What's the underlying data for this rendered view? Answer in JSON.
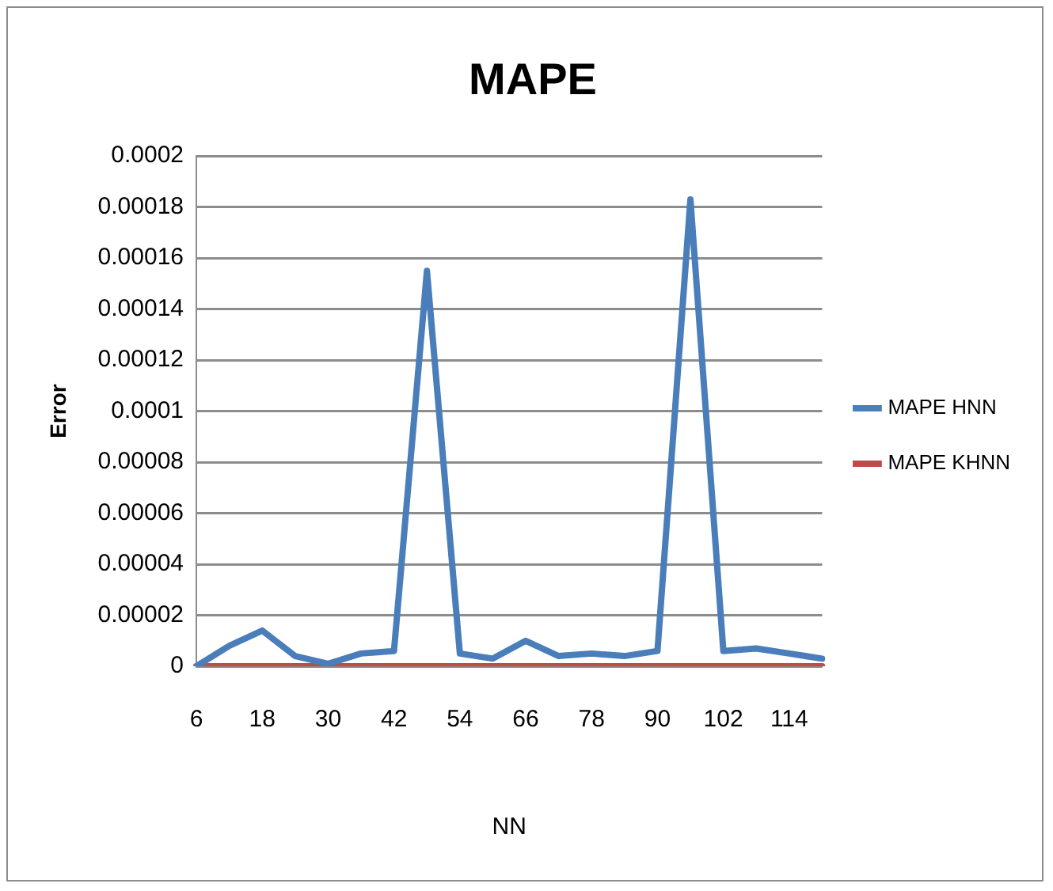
{
  "chart_data": {
    "type": "line",
    "title": "MAPE",
    "xlabel": "NN",
    "ylabel": "Error",
    "categories": [
      "6",
      null,
      "18",
      null,
      "30",
      null,
      "42",
      null,
      "54",
      null,
      "66",
      null,
      "78",
      null,
      "90",
      null,
      "102",
      null,
      "114",
      null
    ],
    "series": [
      {
        "name": "MAPE HNN",
        "color": "#4a7ebb",
        "values": [
          0,
          8e-06,
          1.4e-05,
          4e-06,
          1e-06,
          5e-06,
          6e-06,
          0.000155,
          5e-06,
          3e-06,
          1e-05,
          4e-06,
          5e-06,
          4e-06,
          6e-06,
          0.000183,
          6e-06,
          7e-06,
          5e-06,
          3e-06
        ]
      },
      {
        "name": "MAPE KHNN",
        "color": "#be4b48",
        "values": [
          0,
          0,
          0,
          0,
          0,
          0,
          0,
          0,
          0,
          0,
          0,
          0,
          0,
          0,
          0,
          0,
          0,
          0,
          0,
          0
        ]
      }
    ],
    "ylim": [
      0,
      0.0002
    ],
    "yticks": [
      0,
      {
        "value": 2e-05,
        "label": "0.00002"
      },
      {
        "value": 4e-05,
        "label": "0.00004"
      },
      {
        "value": 6e-05,
        "label": "0.00006"
      },
      {
        "value": 8e-05,
        "label": "0.00008"
      },
      0.0001,
      0.00012,
      0.00014,
      0.00016,
      0.00018,
      0.0002
    ],
    "grid": "y",
    "legend": "right",
    "marker": "none",
    "line_style": "solid"
  }
}
